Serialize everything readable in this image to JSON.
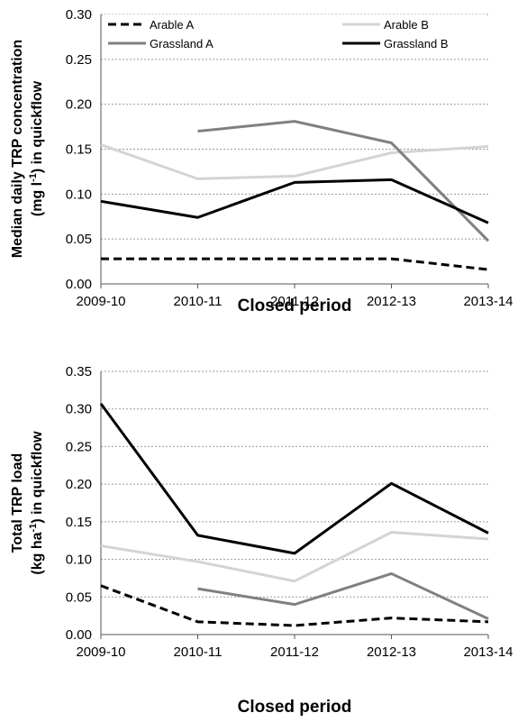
{
  "chart_data": [
    {
      "type": "line",
      "categories": [
        "2009-10",
        "2010-11",
        "2011-12",
        "2012-13",
        "2013-14"
      ],
      "xlabel": "Closed period",
      "ylabel_line1": "Median daily TRP concentration",
      "ylabel_line2": "(mg l",
      "ylabel_sup": "-1",
      "ylabel_line2_end": ") in quickflow",
      "ylim": [
        0,
        0.3
      ],
      "yticks": [
        "0.00",
        "0.05",
        "0.10",
        "0.15",
        "0.20",
        "0.25",
        "0.30"
      ],
      "grid": true,
      "legend": "top",
      "series": [
        {
          "name": "Arable A",
          "values": [
            0.028,
            0.028,
            0.028,
            0.028,
            0.016
          ],
          "color": "#000000",
          "dash": true
        },
        {
          "name": "Arable B",
          "values": [
            0.155,
            0.117,
            0.12,
            0.146,
            0.153
          ],
          "color": "#d4d4d4",
          "dash": false
        },
        {
          "name": "Grassland A",
          "values": [
            null,
            0.17,
            0.181,
            0.157,
            0.048
          ],
          "color": "#808080",
          "dash": false
        },
        {
          "name": "Grassland B",
          "values": [
            0.092,
            0.074,
            0.113,
            0.116,
            0.068
          ],
          "color": "#000000",
          "dash": false
        }
      ]
    },
    {
      "type": "line",
      "categories": [
        "2009-10",
        "2010-11",
        "2011-12",
        "2012-13",
        "2013-14"
      ],
      "xlabel": "Closed period",
      "ylabel_line1": "Total TRP load",
      "ylabel_line2": "(kg ha",
      "ylabel_sup": "-1",
      "ylabel_line2_end": ") in quickflow",
      "ylim": [
        0,
        0.35
      ],
      "yticks": [
        "0.00",
        "0.05",
        "0.10",
        "0.15",
        "0.20",
        "0.25",
        "0.30",
        "0.35"
      ],
      "grid": true,
      "series": [
        {
          "name": "Arable A",
          "values": [
            0.065,
            0.017,
            0.012,
            0.022,
            0.017
          ],
          "color": "#000000",
          "dash": true
        },
        {
          "name": "Arable B",
          "values": [
            0.118,
            0.097,
            0.071,
            0.136,
            0.127
          ],
          "color": "#d4d4d4",
          "dash": false
        },
        {
          "name": "Grassland A",
          "values": [
            null,
            0.061,
            0.04,
            0.081,
            0.021
          ],
          "color": "#808080",
          "dash": false
        },
        {
          "name": "Grassland B",
          "values": [
            0.307,
            0.132,
            0.108,
            0.201,
            0.135
          ],
          "color": "#000000",
          "dash": false
        }
      ]
    }
  ]
}
